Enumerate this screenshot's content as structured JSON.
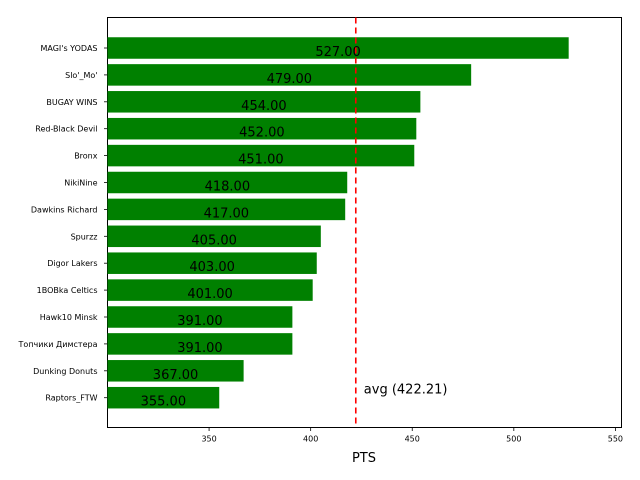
{
  "chart_data": {
    "type": "bar",
    "orientation": "horizontal",
    "categories": [
      "MAGI's YODAS",
      "Slo'_Mo'",
      "BUGAY WINS",
      "Red-Black Devil",
      "Bronx",
      "NikiNine",
      "Dawkins Richard",
      "Spurzz",
      "Digor Lakers",
      "1BOBka Celtics",
      "Hawk10 Minsk",
      "Топчики Димстера",
      "Dunking Donuts",
      "Raptors_FTW"
    ],
    "values": [
      527,
      479,
      454,
      452,
      451,
      418,
      417,
      405,
      403,
      401,
      391,
      391,
      367,
      355
    ],
    "value_labels": [
      "527.00",
      "479.00",
      "454.00",
      "452.00",
      "451.00",
      "418.00",
      "417.00",
      "405.00",
      "403.00",
      "401.00",
      "391.00",
      "391.00",
      "367.00",
      "355.00"
    ],
    "xlabel": "PTS",
    "ylabel": "",
    "xlim": [
      300,
      553
    ],
    "xticks": [
      "350",
      "400",
      "450",
      "500",
      "550"
    ],
    "xtick_values": [
      350,
      400,
      450,
      500,
      550
    ],
    "average": 422.21,
    "average_label": "avg (422.21)",
    "colors": {
      "bar": "#008000",
      "average_line": "#ff0000"
    },
    "grid": false
  }
}
